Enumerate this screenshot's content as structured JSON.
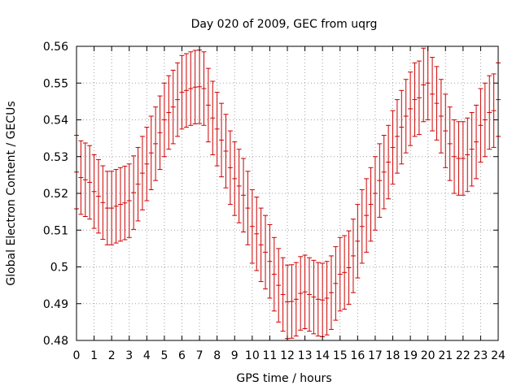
{
  "chart_data": {
    "type": "scatter",
    "style": "errorbars",
    "title": "Day 020 of 2009, GEC from uqrg",
    "xlabel": "GPS time / hours",
    "ylabel": "Global Electron Content / GECUs",
    "xlim": [
      0,
      24
    ],
    "ylim": [
      0.48,
      0.56
    ],
    "grid": true,
    "xticks": [
      0,
      1,
      2,
      3,
      4,
      5,
      6,
      7,
      8,
      9,
      10,
      11,
      12,
      13,
      14,
      15,
      16,
      17,
      18,
      19,
      20,
      21,
      22,
      23,
      24
    ],
    "yticks": [
      0.48,
      0.49,
      0.5,
      0.51,
      0.52,
      0.53,
      0.54,
      0.55,
      0.56
    ],
    "ytick_labels": [
      "0.48",
      "0.49",
      "0.5",
      "0.51",
      "0.52",
      "0.53",
      "0.54",
      "0.55",
      "0.56"
    ],
    "error_halfwidth": 0.01,
    "series": [
      {
        "name": "GEC",
        "color": "#cc0000",
        "x": [
          0,
          0.25,
          0.5,
          0.75,
          1,
          1.25,
          1.5,
          1.75,
          2,
          2.25,
          2.5,
          2.75,
          3,
          3.25,
          3.5,
          3.75,
          4,
          4.25,
          4.5,
          4.75,
          5,
          5.25,
          5.5,
          5.75,
          6,
          6.25,
          6.5,
          6.75,
          7,
          7.25,
          7.5,
          7.75,
          8,
          8.25,
          8.5,
          8.75,
          9,
          9.25,
          9.5,
          9.75,
          10,
          10.25,
          10.5,
          10.75,
          11,
          11.25,
          11.5,
          11.75,
          12,
          12.25,
          12.5,
          12.75,
          13,
          13.25,
          13.5,
          13.75,
          14,
          14.25,
          14.5,
          14.75,
          15,
          15.25,
          15.5,
          15.75,
          16,
          16.25,
          16.5,
          16.75,
          17,
          17.25,
          17.5,
          17.75,
          18,
          18.25,
          18.5,
          18.75,
          19,
          19.25,
          19.5,
          19.75,
          20,
          20.25,
          20.5,
          20.75,
          21,
          21.25,
          21.5,
          21.75,
          22,
          22.25,
          22.5,
          22.75,
          23,
          23.25,
          23.5,
          23.75,
          24
        ],
        "y": [
          0.5258,
          0.5243,
          0.5237,
          0.523,
          0.5205,
          0.5192,
          0.5175,
          0.516,
          0.516,
          0.5165,
          0.517,
          0.5174,
          0.518,
          0.5202,
          0.5225,
          0.5255,
          0.528,
          0.531,
          0.5335,
          0.5365,
          0.54,
          0.542,
          0.5435,
          0.5455,
          0.5475,
          0.548,
          0.5485,
          0.5489,
          0.549,
          0.5485,
          0.544,
          0.5405,
          0.5375,
          0.5345,
          0.5315,
          0.527,
          0.524,
          0.522,
          0.5195,
          0.516,
          0.511,
          0.509,
          0.506,
          0.504,
          0.5015,
          0.498,
          0.495,
          0.4925,
          0.4905,
          0.4906,
          0.4912,
          0.4928,
          0.4932,
          0.4925,
          0.4918,
          0.4912,
          0.491,
          0.4915,
          0.493,
          0.4955,
          0.498,
          0.4985,
          0.4998,
          0.503,
          0.507,
          0.511,
          0.514,
          0.517,
          0.52,
          0.5235,
          0.5258,
          0.5285,
          0.5325,
          0.5355,
          0.538,
          0.541,
          0.543,
          0.5455,
          0.546,
          0.5495,
          0.55,
          0.547,
          0.5445,
          0.541,
          0.537,
          0.5335,
          0.53,
          0.5295,
          0.5295,
          0.5305,
          0.532,
          0.534,
          0.5385,
          0.54,
          0.542,
          0.5425,
          0.5455
        ]
      }
    ]
  }
}
